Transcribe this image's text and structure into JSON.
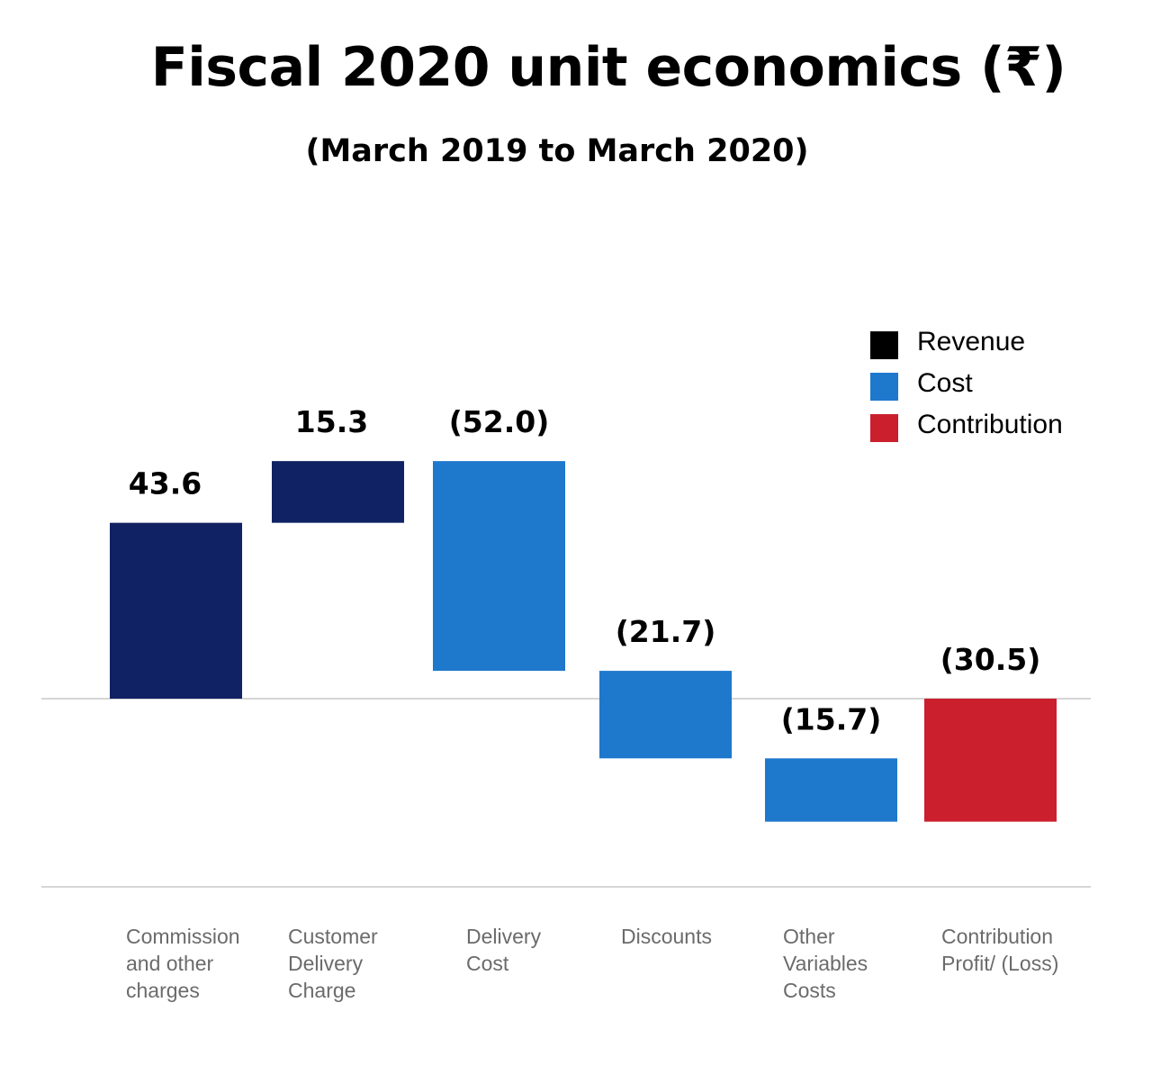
{
  "title": "Fiscal 2020 unit economics (₹)",
  "subtitle": "(March 2019 to March 2020)",
  "legend": [
    {
      "label": "Revenue",
      "color": "#000000"
    },
    {
      "label": "Cost",
      "color": "#1e78cc"
    },
    {
      "label": "Contribution",
      "color": "#cc1f2e"
    }
  ],
  "chart_data": {
    "type": "bar",
    "subtype": "waterfall",
    "title": "Fiscal 2020 unit economics (₹)",
    "subtitle": "(March 2019 to March 2020)",
    "grid": false,
    "legend_position": "top-right",
    "ylim": [
      -46,
      58.9
    ],
    "categories": [
      [
        "Commission",
        "and other",
        "charges"
      ],
      [
        "Customer",
        "Delivery",
        "Charge"
      ],
      [
        "Delivery",
        "Cost"
      ],
      [
        "Discounts"
      ],
      [
        "Other",
        "Variables",
        "Costs"
      ],
      [
        "Contribution",
        "Profit/ (Loss)"
      ]
    ],
    "values": [
      43.6,
      15.3,
      -52.0,
      -21.7,
      -15.7,
      -30.5
    ],
    "data_labels": [
      "43.6",
      "15.3",
      "(52.0)",
      "(21.7)",
      "(15.7)",
      "(30.5)"
    ],
    "bar_types": [
      "Revenue",
      "Revenue",
      "Cost",
      "Cost",
      "Cost",
      "Contribution"
    ],
    "bar_colors": [
      "#102263",
      "#102263",
      "#1e78cc",
      "#1e78cc",
      "#1e78cc",
      "#cc1f2e"
    ]
  }
}
